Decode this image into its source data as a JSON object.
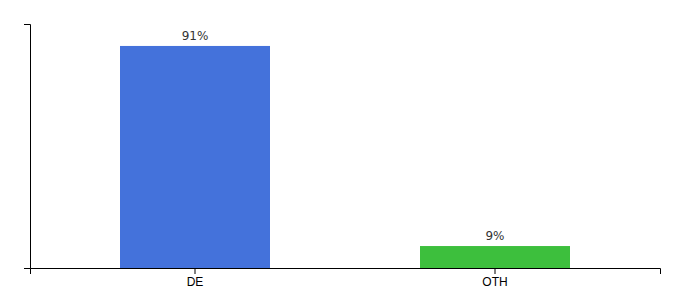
{
  "chart_data": {
    "type": "bar",
    "categories": [
      "DE",
      "OTH"
    ],
    "values": [
      91,
      9
    ],
    "value_labels": [
      "91%",
      "9%"
    ],
    "colors": [
      "#4472db",
      "#3dbf3d"
    ],
    "ylim": [
      0,
      100
    ],
    "yticks": [],
    "grid": false,
    "data_labels": true,
    "tick_labels": "x"
  }
}
